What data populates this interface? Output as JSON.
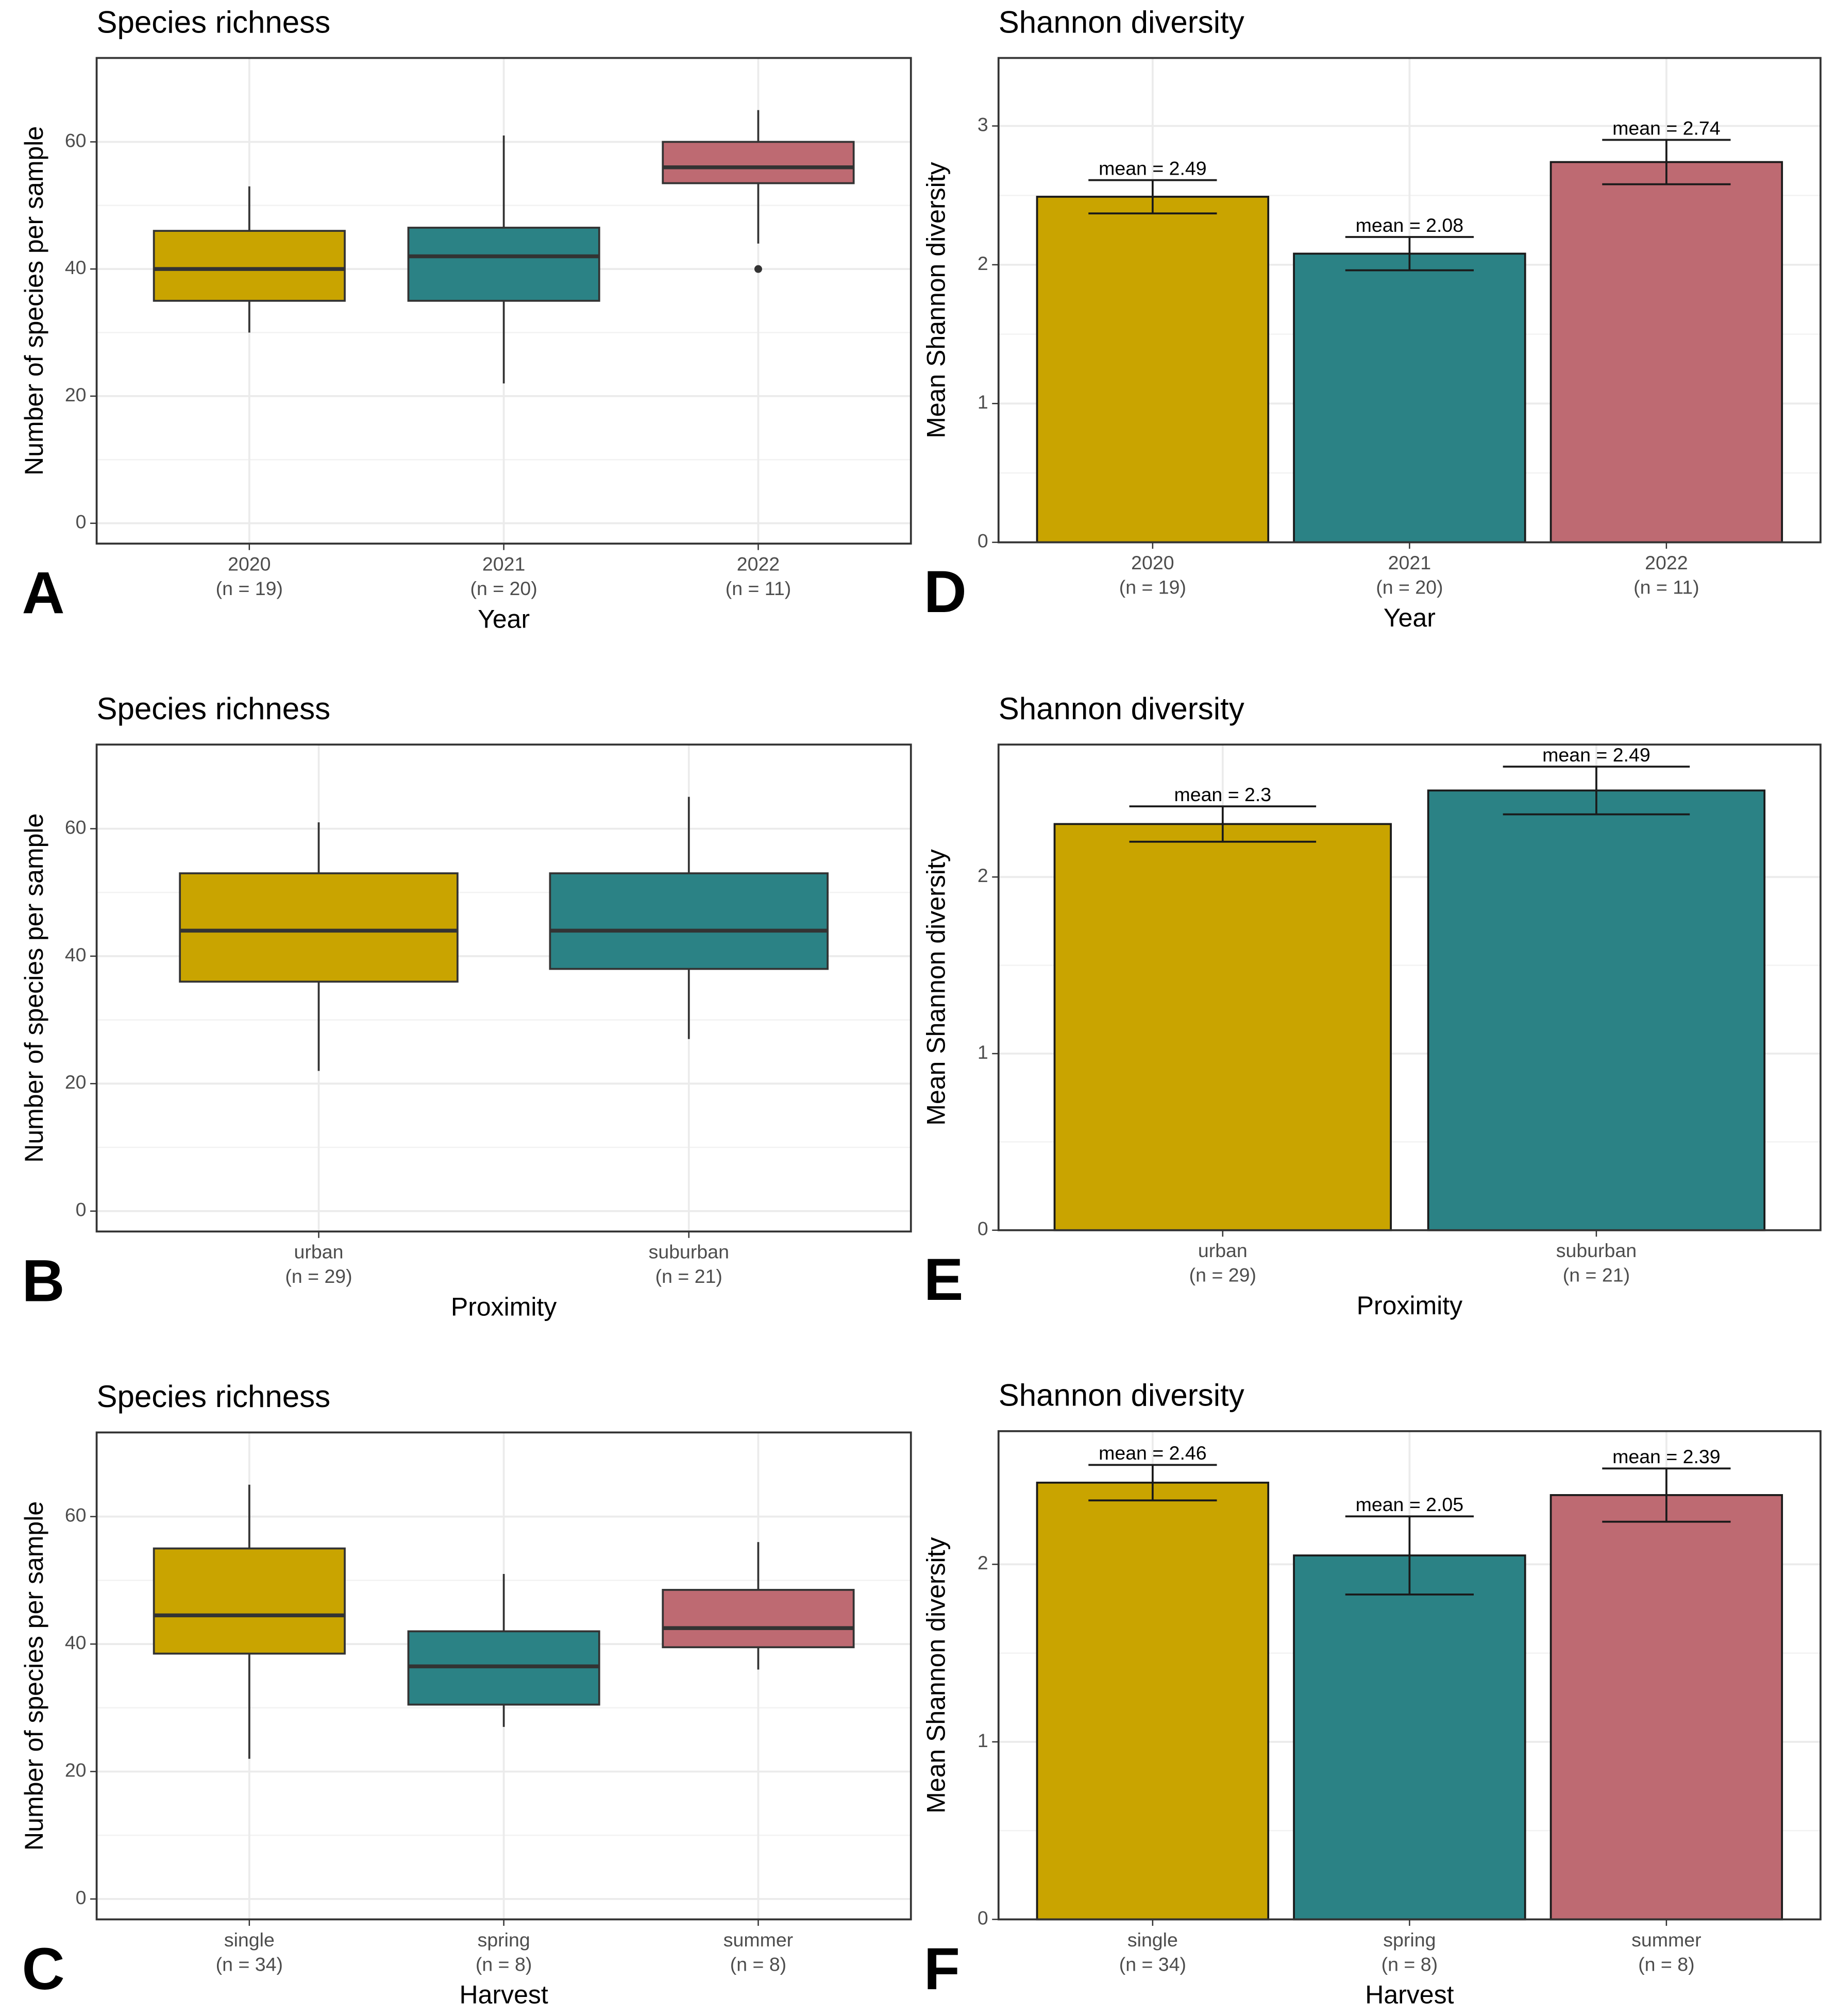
{
  "chart_data": [
    {
      "type": "box",
      "panel_label": "A",
      "title": "Species richness",
      "xlabel": "Year",
      "ylabel": "Number of species per sample",
      "categories": [
        "2020",
        "2021",
        "2022"
      ],
      "category_counts": [
        "(n = 19)",
        "(n = 20)",
        "(n = 11)"
      ],
      "colors": [
        "#c9a400",
        "#2b8285",
        "#be6a72"
      ],
      "ylim": [
        -3.2,
        73.2
      ],
      "yticks": [
        0,
        20,
        40,
        60
      ],
      "grid": true,
      "boxes": [
        {
          "whislo": 30,
          "q1": 35,
          "med": 40,
          "q3": 46,
          "whishi": 53,
          "fliers": []
        },
        {
          "whislo": 22,
          "q1": 35,
          "med": 42,
          "q3": 46.5,
          "whishi": 61,
          "fliers": []
        },
        {
          "whislo": 44,
          "q1": 53.5,
          "med": 56,
          "q3": 60,
          "whishi": 65,
          "fliers": [
            40
          ]
        }
      ]
    },
    {
      "type": "box",
      "panel_label": "B",
      "title": "Species richness",
      "xlabel": "Proximity",
      "ylabel": "Number of species per sample",
      "categories": [
        "urban",
        "suburban"
      ],
      "category_counts": [
        "(n = 29)",
        "(n = 21)"
      ],
      "colors": [
        "#c9a400",
        "#2b8285"
      ],
      "ylim": [
        -3.2,
        73.2
      ],
      "yticks": [
        0,
        20,
        40,
        60
      ],
      "grid": true,
      "boxes": [
        {
          "whislo": 22,
          "q1": 36,
          "med": 44,
          "q3": 53,
          "whishi": 61,
          "fliers": []
        },
        {
          "whislo": 27,
          "q1": 38,
          "med": 44,
          "q3": 53,
          "whishi": 65,
          "fliers": []
        }
      ]
    },
    {
      "type": "box",
      "panel_label": "C",
      "title": "Species richness",
      "xlabel": "Harvest",
      "ylabel": "Number of species per sample",
      "categories": [
        "single",
        "spring",
        "summer"
      ],
      "category_counts": [
        "(n = 34)",
        "(n = 8)",
        "(n = 8)"
      ],
      "colors": [
        "#c9a400",
        "#2b8285",
        "#be6a72"
      ],
      "ylim": [
        -3.2,
        73.2
      ],
      "yticks": [
        0,
        20,
        40,
        60
      ],
      "grid": true,
      "boxes": [
        {
          "whislo": 22,
          "q1": 38.5,
          "med": 44.5,
          "q3": 55,
          "whishi": 65,
          "fliers": []
        },
        {
          "whislo": 27,
          "q1": 30.5,
          "med": 36.5,
          "q3": 42,
          "whishi": 51,
          "fliers": []
        },
        {
          "whislo": 36,
          "q1": 39.5,
          "med": 42.5,
          "q3": 48.5,
          "whishi": 56,
          "fliers": []
        }
      ]
    },
    {
      "type": "bar",
      "panel_label": "D",
      "title": "Shannon diversity",
      "xlabel": "Year",
      "ylabel": "Mean Shannon diversity",
      "categories": [
        "2020",
        "2021",
        "2022"
      ],
      "category_counts": [
        "(n = 19)",
        "(n = 20)",
        "(n = 11)"
      ],
      "colors": [
        "#c9a400",
        "#2b8285",
        "#be6a72"
      ],
      "ylim": [
        0,
        3.49
      ],
      "yticks": [
        0,
        1,
        2,
        3
      ],
      "grid": true,
      "values": [
        2.49,
        2.08,
        2.74
      ],
      "errors": [
        0.12,
        0.12,
        0.16
      ],
      "value_labels": [
        "mean = 2.49",
        "mean = 2.08",
        "mean = 2.74"
      ]
    },
    {
      "type": "bar",
      "panel_label": "E",
      "title": "Shannon diversity",
      "xlabel": "Proximity",
      "ylabel": "Mean Shannon diversity",
      "categories": [
        "urban",
        "suburban"
      ],
      "category_counts": [
        "(n = 29)",
        "(n = 21)"
      ],
      "colors": [
        "#c9a400",
        "#2b8285"
      ],
      "ylim": [
        0,
        2.75
      ],
      "yticks": [
        0,
        1,
        2
      ],
      "grid": true,
      "values": [
        2.3,
        2.49
      ],
      "errors": [
        0.1,
        0.135
      ],
      "value_labels": [
        "mean = 2.3",
        "mean = 2.49"
      ]
    },
    {
      "type": "bar",
      "panel_label": "F",
      "title": "Shannon diversity",
      "xlabel": "Harvest",
      "ylabel": "Mean Shannon diversity",
      "categories": [
        "single",
        "spring",
        "summer"
      ],
      "category_counts": [
        "(n = 34)",
        "(n = 8)",
        "(n = 8)"
      ],
      "colors": [
        "#c9a400",
        "#2b8285",
        "#be6a72"
      ],
      "ylim": [
        0,
        2.75
      ],
      "yticks": [
        0,
        1,
        2
      ],
      "grid": true,
      "values": [
        2.46,
        2.05,
        2.39
      ],
      "errors": [
        0.1,
        0.22,
        0.15
      ],
      "value_labels": [
        "mean = 2.46",
        "mean = 2.05",
        "mean = 2.39"
      ]
    }
  ]
}
